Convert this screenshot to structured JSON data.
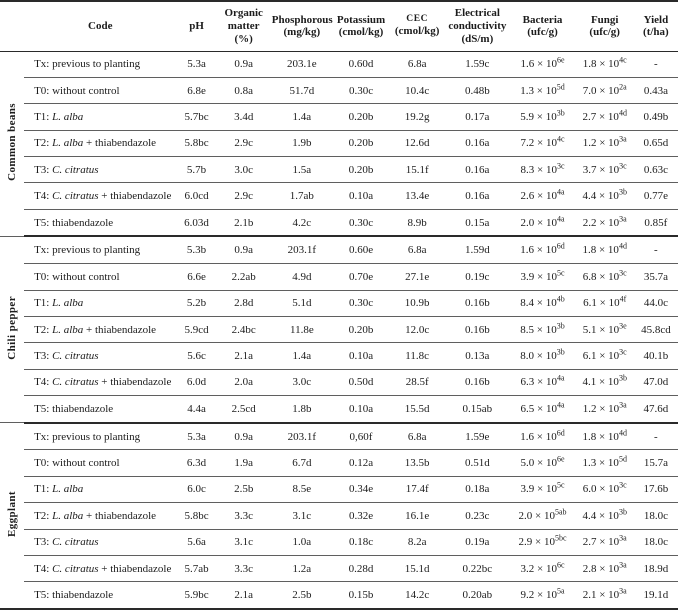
{
  "header": {
    "cols": [
      {
        "name": "Code",
        "unit": ""
      },
      {
        "name": "pH",
        "unit": ""
      },
      {
        "name": "Organic matter",
        "unit": "(%)"
      },
      {
        "name": "Phosphorous",
        "unit": "(mg/kg)"
      },
      {
        "name": "Potassium",
        "unit": "(cmol/kg)"
      },
      {
        "name": "CEC",
        "unit": "(cmol/kg)",
        "sc": true
      },
      {
        "name": "Electrical conductivity",
        "unit": "(dS/m)"
      },
      {
        "name": "Bacteria",
        "unit": "(ufc/g)"
      },
      {
        "name": "Fungi",
        "unit": "(ufc/g)"
      },
      {
        "name": "Yield",
        "unit": "(t/ha)"
      }
    ]
  },
  "groups": [
    {
      "label": "Common beans",
      "rows": [
        {
          "code": {
            "prefix": "Tx: previous to planting",
            "italic": "",
            "suffix": ""
          },
          "values": [
            "5.3a",
            "0.9a",
            "203.1e",
            "0.60d",
            "6.8a",
            "1.59c",
            "1.6 × 10^6e",
            "1.8 × 10^4c",
            "-"
          ]
        },
        {
          "code": {
            "prefix": "T0: without control",
            "italic": "",
            "suffix": ""
          },
          "values": [
            "6.8e",
            "0.8a",
            "51.7d",
            "0.30c",
            "10.4c",
            "0.48b",
            "1.3 × 10^5d",
            "7.0 × 10^2a",
            "0.43a"
          ]
        },
        {
          "code": {
            "prefix": "T1: ",
            "italic": "L. alba",
            "suffix": ""
          },
          "values": [
            "5.7bc",
            "3.4d",
            "1.4a",
            "0.20b",
            "19.2g",
            "0.17a",
            "5.9 × 10^3b",
            "2.7 × 10^4d",
            "0.49b"
          ]
        },
        {
          "code": {
            "prefix": "T2: ",
            "italic": "L. alba",
            "suffix": " + thiabendazole"
          },
          "values": [
            "5.8bc",
            "2.9c",
            "1.9b",
            "0.20b",
            "12.6d",
            "0.16a",
            "7.2 × 10^4c",
            "1.2 × 10^3a",
            "0.65d"
          ]
        },
        {
          "code": {
            "prefix": "T3: ",
            "italic": "C. citratus",
            "suffix": ""
          },
          "values": [
            "5.7b",
            "3.0c",
            "1.5a",
            "0.20b",
            "15.1f",
            "0.16a",
            "8.3 × 10^3c",
            "3.7 × 10^3c",
            "0.63c"
          ]
        },
        {
          "code": {
            "prefix": "T4: ",
            "italic": "C. citratus",
            "suffix": " + thiabendazole"
          },
          "values": [
            "6.0cd",
            "2.9c",
            "1.7ab",
            "0.10a",
            "13.4e",
            "0.16a",
            "2.6 × 10^4a",
            "4.4 × 10^3b",
            "0.77e"
          ]
        },
        {
          "code": {
            "prefix": "T5: thiabendazole",
            "italic": "",
            "suffix": ""
          },
          "values": [
            "6.03d",
            "2.1b",
            "4.2c",
            "0.30c",
            "8.9b",
            "0.15a",
            "2.0 × 10^4a",
            "2.2 × 10^3a",
            "0.85f"
          ]
        }
      ]
    },
    {
      "label": "Chili pepper",
      "rows": [
        {
          "code": {
            "prefix": "Tx: previous to planting",
            "italic": "",
            "suffix": ""
          },
          "values": [
            "5.3b",
            "0.9a",
            "203.1f",
            "0.60e",
            "6.8a",
            "1.59d",
            "1.6 × 10^6d",
            "1.8 × 10^4d",
            "-"
          ]
        },
        {
          "code": {
            "prefix": "T0: without control",
            "italic": "",
            "suffix": ""
          },
          "values": [
            "6.6e",
            "2.2ab",
            "4.9d",
            "0.70e",
            "27.1e",
            "0.19c",
            "3.9 × 10^5c",
            "6.8 × 10^3c",
            "35.7a"
          ]
        },
        {
          "code": {
            "prefix": "T1: ",
            "italic": "L. alba",
            "suffix": ""
          },
          "values": [
            "5.2b",
            "2.8d",
            "5.1d",
            "0.30c",
            "10.9b",
            "0.16b",
            "8.4 × 10^4b",
            "6.1 × 10^4f",
            "44.0c"
          ]
        },
        {
          "code": {
            "prefix": "T2: ",
            "italic": "L. alba",
            "suffix": " + thiabendazole"
          },
          "values": [
            "5.9cd",
            "2.4bc",
            "11.8e",
            "0.20b",
            "12.0c",
            "0.16b",
            "8.5 × 10^3b",
            "5.1 × 10^3e",
            "45.8cd"
          ]
        },
        {
          "code": {
            "prefix": "T3: ",
            "italic": "C. citratus",
            "suffix": ""
          },
          "values": [
            "5.6c",
            "2.1a",
            "1.4a",
            "0.10a",
            "11.8c",
            "0.13a",
            "8.0 × 10^3b",
            "6.1 × 10^3c",
            "40.1b"
          ]
        },
        {
          "code": {
            "prefix": "T4: ",
            "italic": "C. citratus",
            "suffix": " + thiabendazole"
          },
          "values": [
            "6.0d",
            "2.0a",
            "3.0c",
            "0.50d",
            "28.5f",
            "0.16b",
            "6.3 × 10^4a",
            "4.1 × 10^3b",
            "47.0d"
          ]
        },
        {
          "code": {
            "prefix": "T5: thiabendazole",
            "italic": "",
            "suffix": ""
          },
          "values": [
            "4.4a",
            "2.5cd",
            "1.8b",
            "0.10a",
            "15.5d",
            "0.15ab",
            "6.5 × 10^4a",
            "1.2 × 10^3a",
            "47.6d"
          ]
        }
      ]
    },
    {
      "label": "Eggplant",
      "rows": [
        {
          "code": {
            "prefix": "Tx: previous to planting",
            "italic": "",
            "suffix": ""
          },
          "values": [
            "5.3a",
            "0.9a",
            "203.1f",
            "0,60f",
            "6.8a",
            "1.59e",
            "1.6 × 10^6d",
            "1.8 × 10^4d",
            "-"
          ]
        },
        {
          "code": {
            "prefix": "T0: without control",
            "italic": "",
            "suffix": ""
          },
          "values": [
            "6.3d",
            "1.9a",
            "6.7d",
            "0.12a",
            "13.5b",
            "0.51d",
            "5.0 × 10^6e",
            "1.3 × 10^5d",
            "15.7a"
          ]
        },
        {
          "code": {
            "prefix": "T1: ",
            "italic": "L. alba",
            "suffix": ""
          },
          "values": [
            "6.0c",
            "2.5b",
            "8.5e",
            "0.34e",
            "17.4f",
            "0.18a",
            "3.9 × 10^5c",
            "6.0 × 10^3c",
            "17.6b"
          ]
        },
        {
          "code": {
            "prefix": "T2: ",
            "italic": "L. alba",
            "suffix": " + thiabendazole"
          },
          "values": [
            "5.8bc",
            "3.3c",
            "3.1c",
            "0.32e",
            "16.1e",
            "0.23c",
            "2.0 × 10^5ab",
            "4.4 × 10^3b",
            "18.0c"
          ]
        },
        {
          "code": {
            "prefix": "T3: ",
            "italic": "C. citratus",
            "suffix": ""
          },
          "values": [
            "5.6a",
            "3.1c",
            "1.0a",
            "0.18c",
            "8.2a",
            "0.19a",
            "2.9 × 10^5bc",
            "2.7 × 10^3a",
            "18.0c"
          ]
        },
        {
          "code": {
            "prefix": "T4: ",
            "italic": "C. citratus",
            "suffix": " + thiabendazole"
          },
          "values": [
            "5.7ab",
            "3.3c",
            "1.2a",
            "0.28d",
            "15.1d",
            "0.22bc",
            "3.2 × 10^6c",
            "2.8 × 10^3a",
            "18.9d"
          ]
        },
        {
          "code": {
            "prefix": "T5: thiabendazole",
            "italic": "",
            "suffix": ""
          },
          "values": [
            "5.9bc",
            "2.1a",
            "2.5b",
            "0.15b",
            "14.2c",
            "0.20ab",
            "9.2 × 10^5a",
            "2.1 × 10^3a",
            "19.1d"
          ]
        }
      ]
    }
  ]
}
